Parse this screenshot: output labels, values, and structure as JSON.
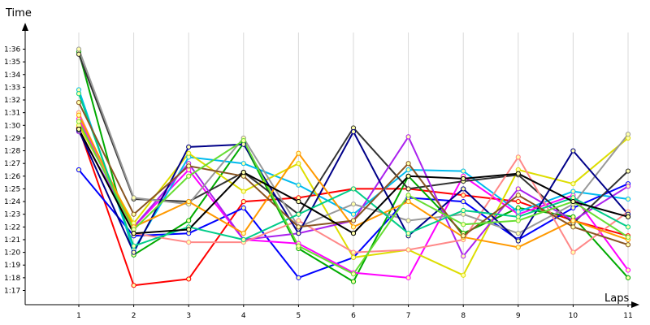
{
  "chart_data": {
    "type": "line",
    "title": "",
    "xlabel": "Laps",
    "ylabel": "Time",
    "x": [
      1,
      2,
      3,
      4,
      5,
      6,
      7,
      8,
      9,
      10,
      11
    ],
    "y_ticks": [
      "1:17",
      "1:18",
      "1:19",
      "1:20",
      "1:21",
      "1:22",
      "1:23",
      "1:24",
      "1:25",
      "1:26",
      "1:27",
      "1:28",
      "1:29",
      "1:30",
      "1:31",
      "1:32",
      "1:33",
      "1:34",
      "1:35",
      "1:36"
    ],
    "ylim": [
      "1:16.2",
      "1:36.8"
    ],
    "grid": true,
    "legend": "none",
    "series": [
      {
        "color": "#ff0000",
        "values": [
          "1:29.8",
          "1:17.4",
          "1:17.9",
          "1:24.0",
          "1:24.3",
          "1:25.0",
          "1:25.0",
          "1:24.5",
          "1:24.0",
          "1:22.5",
          "1:21.3"
        ]
      },
      {
        "color": "#0000ff",
        "values": [
          "1:26.5",
          "1:21.3",
          "1:21.5",
          "1:23.5",
          "1:18.0",
          "1:19.6",
          "1:24.3",
          "1:24.0",
          "1:21.0",
          "1:23.5",
          "1:25.4"
        ]
      },
      {
        "color": "#00aa00",
        "values": [
          "1:35.8",
          "1:19.8",
          "1:22.5",
          "1:28.6",
          "1:20.3",
          "1:17.7",
          "1:26.0",
          "1:21.5",
          "1:23.5",
          "1:22.8",
          "1:18.0"
        ]
      },
      {
        "color": "#ff00ff",
        "values": [
          "1:30.5",
          "1:22.0",
          "1:26.5",
          "1:21.0",
          "1:20.7",
          "1:18.4",
          "1:18.0",
          "1:26.0",
          "1:23.0",
          "1:24.5",
          "1:18.6"
        ]
      },
      {
        "color": "#00bbee",
        "values": [
          "1:32.8",
          "1:20.2",
          "1:27.5",
          "1:27.0",
          "1:25.3",
          "1:23.0",
          "1:26.5",
          "1:26.4",
          "1:23.2",
          "1:24.8",
          "1:24.2"
        ]
      },
      {
        "color": "#dddd00",
        "values": [
          "1:30.0",
          "1:22.3",
          "1:27.8",
          "1:24.8",
          "1:27.0",
          "1:19.6",
          "1:20.2",
          "1:18.2",
          "1:26.5",
          "1:25.4",
          "1:29.0"
        ]
      },
      {
        "color": "#333333",
        "values": [
          "1:35.6",
          "1:24.2",
          "1:24.0",
          "1:26.3",
          "1:23.0",
          "1:29.8",
          "1:25.0",
          "1:25.6",
          "1:26.1",
          "1:22.3",
          "1:26.4"
        ]
      },
      {
        "color": "#aa22ee",
        "values": [
          "1:29.5",
          "1:22.0",
          "1:27.0",
          "1:21.0",
          "1:21.5",
          "1:22.5",
          "1:29.1",
          "1:19.7",
          "1:25.0",
          "1:22.5",
          "1:25.2"
        ]
      },
      {
        "color": "#ff8888",
        "values": [
          "1:31.0",
          "1:21.5",
          "1:20.8",
          "1:20.8",
          "1:22.5",
          "1:20.0",
          "1:20.2",
          "1:21.0",
          "1:27.5",
          "1:20.0",
          "1:23.2"
        ]
      },
      {
        "color": "#999999",
        "values": [
          "1:36.0",
          "1:24.3",
          "1:23.8",
          "1:29.0",
          "1:22.0",
          "1:23.8",
          "1:22.5",
          "1:23.0",
          "1:21.5",
          "1:23.8",
          "1:29.3"
        ]
      },
      {
        "color": "#000088",
        "values": [
          "1:29.6",
          "1:20.0",
          "1:28.3",
          "1:28.5",
          "1:21.5",
          "1:29.5",
          "1:21.3",
          "1:25.0",
          "1:20.9",
          "1:28.0",
          "1:23.0"
        ]
      },
      {
        "color": "#ff9900",
        "values": [
          "1:30.8",
          "1:22.0",
          "1:24.0",
          "1:21.5",
          "1:27.8",
          "1:22.0",
          "1:24.0",
          "1:21.2",
          "1:20.4",
          "1:22.5",
          "1:21.0"
        ]
      },
      {
        "color": "#00cc88",
        "values": [
          "1:32.5",
          "1:20.5",
          "1:22.0",
          "1:21.0",
          "1:23.0",
          "1:25.0",
          "1:21.5",
          "1:23.3",
          "1:22.8",
          "1:24.3",
          "1:22.0"
        ]
      },
      {
        "color": "#885522",
        "values": [
          "1:31.8",
          "1:23.0",
          "1:26.8",
          "1:26.0",
          "1:22.0",
          "1:22.5",
          "1:27.0",
          "1:21.3",
          "1:24.5",
          "1:22.0",
          "1:20.6"
        ]
      },
      {
        "color": "#66dd33",
        "values": [
          "1:30.3",
          "1:21.8",
          "1:26.0",
          "1:28.8",
          "1:20.5",
          "1:18.3",
          "1:24.5",
          "1:22.2",
          "1:22.5",
          "1:24.0",
          "1:21.2"
        ]
      },
      {
        "color": "#000000",
        "values": [
          "1:29.7",
          "1:21.5",
          "1:21.8",
          "1:26.3",
          "1:24.0",
          "1:21.5",
          "1:26.0",
          "1:25.8",
          "1:26.2",
          "1:24.0",
          "1:22.8"
        ]
      }
    ]
  }
}
